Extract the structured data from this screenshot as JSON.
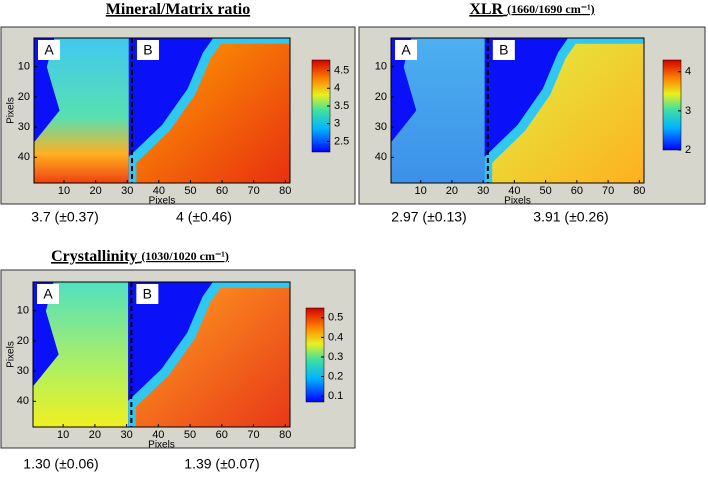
{
  "chart_data": [
    {
      "type": "heatmap",
      "title": "Mineral/Matrix ratio",
      "xlabel": "Pixels",
      "ylabel": "Pixels",
      "xlim": [
        0.5,
        81.5
      ],
      "xticks": [
        10,
        20,
        30,
        40,
        50,
        60,
        70,
        80
      ],
      "ylim": [
        0.5,
        48.5
      ],
      "yticks": [
        10,
        20,
        30,
        40
      ],
      "colorbar_lim": [
        2.2,
        4.8
      ],
      "colorbar_ticks": [
        2.5,
        3,
        3.5,
        4,
        4.5
      ],
      "region_labels": [
        "A",
        "B"
      ],
      "divider_x": 31.5,
      "stats": [
        "3.7 (±0.37)",
        "4 (±0.46)"
      ]
    },
    {
      "type": "heatmap",
      "title": "XLR",
      "title_note": "(1660/1690 cm⁻¹)",
      "xlabel": "Pixels",
      "xlim": [
        0.5,
        81.5
      ],
      "xticks": [
        10,
        20,
        30,
        40,
        50,
        60,
        70,
        80
      ],
      "ylim": [
        0.5,
        48.5
      ],
      "yticks": [
        10,
        20,
        30,
        40
      ],
      "colorbar_lim": [
        2,
        4.3
      ],
      "colorbar_ticks": [
        2,
        3,
        4
      ],
      "region_labels": [
        "A",
        "B"
      ],
      "divider_x": 31.5,
      "stats": [
        "2.97 (±0.13)",
        "3.91 (±0.26)"
      ]
    },
    {
      "type": "heatmap",
      "title": "Crystallinity",
      "title_note": "(1030/1020 cm⁻¹)",
      "xlabel": "Pixels",
      "ylabel": "Pixels",
      "xlim": [
        0.5,
        81.5
      ],
      "xticks": [
        10,
        20,
        30,
        40,
        50,
        60,
        70,
        80
      ],
      "ylim": [
        0.5,
        48.5
      ],
      "yticks": [
        10,
        20,
        30,
        40
      ],
      "colorbar_lim": [
        0.07,
        0.55
      ],
      "colorbar_ticks": [
        0.1,
        0.2,
        0.3,
        0.4,
        0.5
      ],
      "region_labels": [
        "A",
        "B"
      ],
      "divider_x": 31.5,
      "stats": [
        "1.30 (±0.06)",
        "1.39 (±0.07)"
      ]
    }
  ]
}
